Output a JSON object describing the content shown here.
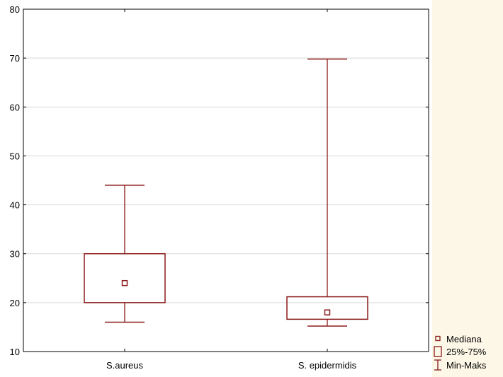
{
  "chart_data": {
    "type": "box",
    "categories": [
      "S.aureus",
      "S. epidermidis"
    ],
    "boxes": [
      {
        "category": "S.aureus",
        "min": 16,
        "q1": 20,
        "median": 24,
        "q3": 30,
        "max": 44
      },
      {
        "category": "S. epidermidis",
        "min": 15.2,
        "q1": 16.6,
        "median": 18,
        "q3": 21.2,
        "max": 69.8
      }
    ],
    "ylim": [
      10,
      80
    ],
    "yticks": [
      10,
      20,
      30,
      40,
      50,
      60,
      70,
      80
    ],
    "grid": true,
    "legend": {
      "placement": "bottom-right",
      "items": [
        {
          "symbol": "median-square",
          "label": "Mediana"
        },
        {
          "symbol": "box",
          "label": "25%-75%"
        },
        {
          "symbol": "whisker",
          "label": "Min-Maks"
        }
      ]
    },
    "colors": {
      "series": "#8b1a1a",
      "grid": "#d9d9d9",
      "side_panel": "#fcf7e6"
    }
  }
}
